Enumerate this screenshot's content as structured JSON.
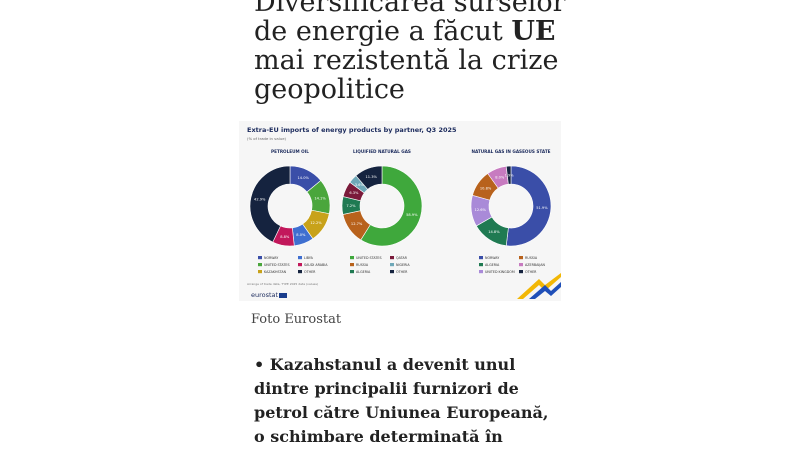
{
  "article": {
    "title_part1": "Diversificarea surselor de energie a făcut",
    "title_strong": "UE",
    "title_part2": "mai rezistentă la crize geopolitice",
    "caption": "Foto Eurostat",
    "bullet": "• Kazahstanul a devenit unul dintre principalii furnizori de petrol către Uniunea Europeană, o schimbare determinată în"
  },
  "infographic": {
    "title": "Extra-EU imports of energy products by partner, Q3 2025",
    "subtitle": "(% of trade in value)",
    "footnote": "Arrange of trade data, TYPE 2025 data (values)",
    "logo": "eurostat",
    "colors": {
      "norway": "#3a4ea8",
      "libya": "#3f6fd0",
      "usa": "#4aa63c",
      "saudi": "#2d8b57",
      "kazakhstan": "#c8a21a",
      "iraq": "#4f9fe8",
      "other": "#15233f",
      "qatar": "#7a1a3a",
      "nigeria": "#6fa8b8",
      "russia": "#b8621c",
      "algeria": "#1f7a52",
      "azerbaijan": "#c77bc0",
      "uk": "#a98ad8",
      "green": "#3fa83c",
      "red": "#c2185b"
    }
  },
  "chart_data": [
    {
      "type": "pie",
      "title": "PETROLEUM OIL",
      "slices": [
        {
          "label": "Norway",
          "value": 14.0,
          "color": "#3a4ea8"
        },
        {
          "label": "United States",
          "value": 14.1,
          "color": "#4aa63c"
        },
        {
          "label": "Kazakhstan",
          "value": 12.2,
          "color": "#c8a21a"
        },
        {
          "label": "Libya",
          "value": 8.0,
          "color": "#3f6fd0"
        },
        {
          "label": "Saudi Arabia",
          "value": 8.8,
          "color": "#c2185b"
        },
        {
          "label": "Other",
          "value": 42.9,
          "color": "#15233f"
        }
      ],
      "legend": [
        "NORWAY",
        "LIBYA",
        "UNITED STATES",
        "SAUDI ARABIA",
        "KAZAKHSTAN",
        "OTHER"
      ]
    },
    {
      "type": "pie",
      "title": "LIQUIFIED NATURAL GAS",
      "slices": [
        {
          "label": "United States",
          "value": 58.9,
          "color": "#3fa83c"
        },
        {
          "label": "Russia",
          "value": 12.7,
          "color": "#b8621c"
        },
        {
          "label": "Algeria",
          "value": 7.2,
          "color": "#1f7a52"
        },
        {
          "label": "Qatar",
          "value": 6.3,
          "color": "#7a1a3a"
        },
        {
          "label": "Nigeria",
          "value": 3.6,
          "color": "#6fa8b8"
        },
        {
          "label": "Other",
          "value": 11.3,
          "color": "#15233f"
        }
      ],
      "legend": [
        "UNITED STATES",
        "QATAR",
        "RUSSIA",
        "NIGERIA",
        "ALGERIA",
        "OTHER"
      ]
    },
    {
      "type": "pie",
      "title": "NATURAL GAS IN GASEOUS STATE",
      "slices": [
        {
          "label": "Norway",
          "value": 51.9,
          "color": "#3a4ea8"
        },
        {
          "label": "Algeria",
          "value": 14.8,
          "color": "#1f7a52"
        },
        {
          "label": "United Kingdom",
          "value": 12.6,
          "color": "#a98ad8"
        },
        {
          "label": "Russia",
          "value": 10.8,
          "color": "#b8621c"
        },
        {
          "label": "Azerbaijan",
          "value": 8.0,
          "color": "#c77bc0"
        },
        {
          "label": "Other",
          "value": 1.9,
          "color": "#15233f"
        }
      ],
      "legend": [
        "NORWAY",
        "RUSSIA",
        "ALGERIA",
        "AZERBAIJAN",
        "UNITED KINGDOM",
        "OTHER"
      ]
    }
  ]
}
